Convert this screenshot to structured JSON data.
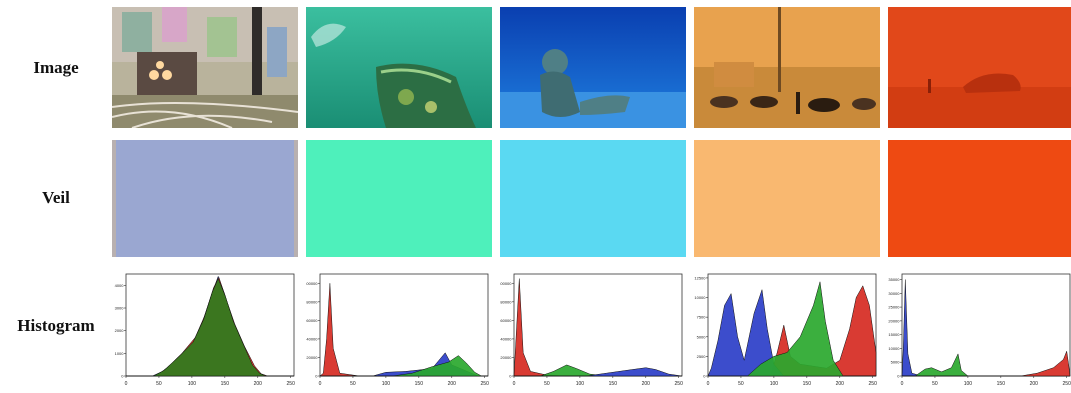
{
  "rows": {
    "image_label": "Image",
    "veil_label": "Veil",
    "histogram_label": "Histogram"
  },
  "veil_colors": [
    "#9aa7d1",
    "#4ef0bb",
    "#5ad9f2",
    "#f9b870",
    "#ee4a12"
  ],
  "chart_data": [
    {
      "type": "area",
      "title": "",
      "xlabel": "",
      "ylabel": "",
      "xlim": [
        0,
        255
      ],
      "x_ticks": [
        "0",
        "50",
        "100",
        "150",
        "200",
        "250"
      ],
      "y_ticks": [
        "0",
        "1000",
        "2000",
        "3000",
        "4000"
      ],
      "ylim": [
        0,
        4500
      ],
      "series": [
        {
          "color": "#2b3ec8",
          "points": [
            [
              0,
              0
            ],
            [
              40,
              0
            ],
            [
              55,
              200
            ],
            [
              80,
              800
            ],
            [
              100,
              1400
            ],
            [
              115,
              2300
            ],
            [
              130,
              3600
            ],
            [
              140,
              4400
            ],
            [
              150,
              3600
            ],
            [
              160,
              2600
            ],
            [
              175,
              1500
            ],
            [
              190,
              500
            ],
            [
              200,
              150
            ],
            [
              210,
              0
            ],
            [
              255,
              0
            ]
          ]
        },
        {
          "color": "#d62a22",
          "points": [
            [
              0,
              0
            ],
            [
              45,
              0
            ],
            [
              60,
              300
            ],
            [
              85,
              1000
            ],
            [
              105,
              1700
            ],
            [
              120,
              2700
            ],
            [
              133,
              3900
            ],
            [
              141,
              4350
            ],
            [
              152,
              3400
            ],
            [
              165,
              2300
            ],
            [
              180,
              1300
            ],
            [
              195,
              450
            ],
            [
              205,
              100
            ],
            [
              215,
              0
            ],
            [
              255,
              0
            ]
          ]
        },
        {
          "color": "#2f7d1e",
          "points": [
            [
              0,
              0
            ],
            [
              42,
              0
            ],
            [
              58,
              250
            ],
            [
              82,
              900
            ],
            [
              102,
              1500
            ],
            [
              118,
              2500
            ],
            [
              131,
              3700
            ],
            [
              140,
              4300
            ],
            [
              151,
              3500
            ],
            [
              163,
              2400
            ],
            [
              178,
              1400
            ],
            [
              192,
              480
            ],
            [
              203,
              120
            ],
            [
              212,
              0
            ],
            [
              255,
              0
            ]
          ]
        }
      ]
    },
    {
      "type": "area",
      "title": "",
      "xlabel": "",
      "ylabel": "",
      "xlim": [
        0,
        255
      ],
      "x_ticks": [
        "0",
        "50",
        "100",
        "150",
        "200",
        "250"
      ],
      "y_ticks": [
        "0",
        "20000",
        "40000",
        "60000",
        "80000",
        "100000"
      ],
      "ylim": [
        0,
        110000
      ],
      "series": [
        {
          "color": "#d62a22",
          "points": [
            [
              0,
              0
            ],
            [
              5,
              3000
            ],
            [
              10,
              40000
            ],
            [
              15,
              100000
            ],
            [
              20,
              30000
            ],
            [
              30,
              3000
            ],
            [
              60,
              0
            ],
            [
              255,
              0
            ]
          ]
        },
        {
          "color": "#2b3ec8",
          "points": [
            [
              0,
              0
            ],
            [
              80,
              0
            ],
            [
              100,
              4000
            ],
            [
              130,
              5000
            ],
            [
              170,
              8000
            ],
            [
              190,
              25000
            ],
            [
              200,
              12000
            ],
            [
              220,
              6000
            ],
            [
              240,
              0
            ],
            [
              255,
              0
            ]
          ]
        },
        {
          "color": "#2aa82e",
          "points": [
            [
              0,
              0
            ],
            [
              110,
              0
            ],
            [
              140,
              3000
            ],
            [
              170,
              10000
            ],
            [
              195,
              15000
            ],
            [
              210,
              22000
            ],
            [
              222,
              14000
            ],
            [
              235,
              4000
            ],
            [
              245,
              0
            ],
            [
              255,
              0
            ]
          ]
        }
      ]
    },
    {
      "type": "area",
      "title": "",
      "xlabel": "",
      "ylabel": "",
      "xlim": [
        0,
        255
      ],
      "x_ticks": [
        "0",
        "50",
        "100",
        "150",
        "200",
        "250"
      ],
      "y_ticks": [
        "0",
        "20000",
        "40000",
        "60000",
        "80000",
        "100000"
      ],
      "ylim": [
        0,
        110000
      ],
      "series": [
        {
          "color": "#d62a22",
          "points": [
            [
              0,
              0
            ],
            [
              3,
              40000
            ],
            [
              8,
              105000
            ],
            [
              14,
              25000
            ],
            [
              25,
              5000
            ],
            [
              50,
              1000
            ],
            [
              80,
              0
            ],
            [
              255,
              0
            ]
          ]
        },
        {
          "color": "#2aa82e",
          "points": [
            [
              0,
              0
            ],
            [
              40,
              0
            ],
            [
              60,
              5000
            ],
            [
              80,
              12000
            ],
            [
              95,
              8000
            ],
            [
              115,
              2000
            ],
            [
              140,
              0
            ],
            [
              255,
              0
            ]
          ]
        },
        {
          "color": "#2b3ec8",
          "points": [
            [
              0,
              0
            ],
            [
              110,
              0
            ],
            [
              140,
              3000
            ],
            [
              170,
              6000
            ],
            [
              200,
              9000
            ],
            [
              215,
              7000
            ],
            [
              235,
              2000
            ],
            [
              255,
              0
            ]
          ]
        }
      ]
    },
    {
      "type": "area",
      "title": "",
      "xlabel": "",
      "ylabel": "",
      "xlim": [
        0,
        255
      ],
      "x_ticks": [
        "0",
        "50",
        "100",
        "150",
        "200",
        "250"
      ],
      "y_ticks": [
        "0",
        "2500",
        "5000",
        "7500",
        "10000",
        "12500"
      ],
      "ylim": [
        0,
        13000
      ],
      "series": [
        {
          "color": "#d62a22",
          "points": [
            [
              0,
              0
            ],
            [
              95,
              0
            ],
            [
              105,
              3000
            ],
            [
              115,
              6500
            ],
            [
              125,
              2500
            ],
            [
              140,
              1500
            ],
            [
              180,
              1000
            ],
            [
              200,
              2000
            ],
            [
              215,
              6000
            ],
            [
              225,
              10000
            ],
            [
              235,
              11500
            ],
            [
              245,
              9000
            ],
            [
              255,
              3000
            ]
          ]
        },
        {
          "color": "#2b3ec8",
          "points": [
            [
              0,
              0
            ],
            [
              5,
              1000
            ],
            [
              15,
              4500
            ],
            [
              25,
              9000
            ],
            [
              35,
              10500
            ],
            [
              45,
              5000
            ],
            [
              55,
              2000
            ],
            [
              70,
              8000
            ],
            [
              82,
              11000
            ],
            [
              90,
              6000
            ],
            [
              100,
              1500
            ],
            [
              115,
              0
            ],
            [
              255,
              0
            ]
          ]
        },
        {
          "color": "#2aa82e",
          "points": [
            [
              0,
              0
            ],
            [
              60,
              0
            ],
            [
              80,
              1500
            ],
            [
              100,
              2500
            ],
            [
              120,
              3000
            ],
            [
              140,
              5000
            ],
            [
              160,
              9000
            ],
            [
              170,
              12000
            ],
            [
              178,
              7000
            ],
            [
              190,
              2000
            ],
            [
              205,
              0
            ],
            [
              255,
              0
            ]
          ]
        }
      ]
    },
    {
      "type": "area",
      "title": "",
      "xlabel": "",
      "ylabel": "",
      "xlim": [
        0,
        255
      ],
      "x_ticks": [
        "0",
        "50",
        "100",
        "150",
        "200",
        "250"
      ],
      "y_ticks": [
        "0",
        "5000",
        "10000",
        "15000",
        "20000",
        "25000",
        "30000",
        "35000"
      ],
      "ylim": [
        0,
        37000
      ],
      "series": [
        {
          "color": "#2b3ec8",
          "points": [
            [
              0,
              0
            ],
            [
              2,
              10000
            ],
            [
              5,
              35000
            ],
            [
              9,
              8000
            ],
            [
              15,
              1000
            ],
            [
              30,
              0
            ],
            [
              255,
              0
            ]
          ]
        },
        {
          "color": "#2aa82e",
          "points": [
            [
              0,
              0
            ],
            [
              20,
              0
            ],
            [
              35,
              2500
            ],
            [
              45,
              3000
            ],
            [
              60,
              1500
            ],
            [
              75,
              3000
            ],
            [
              85,
              8000
            ],
            [
              90,
              2000
            ],
            [
              100,
              0
            ],
            [
              255,
              0
            ]
          ]
        },
        {
          "color": "#d62a22",
          "points": [
            [
              0,
              0
            ],
            [
              180,
              0
            ],
            [
              205,
              1000
            ],
            [
              230,
              3000
            ],
            [
              245,
              6000
            ],
            [
              250,
              9000
            ],
            [
              253,
              4000
            ],
            [
              255,
              0
            ]
          ]
        }
      ]
    }
  ]
}
